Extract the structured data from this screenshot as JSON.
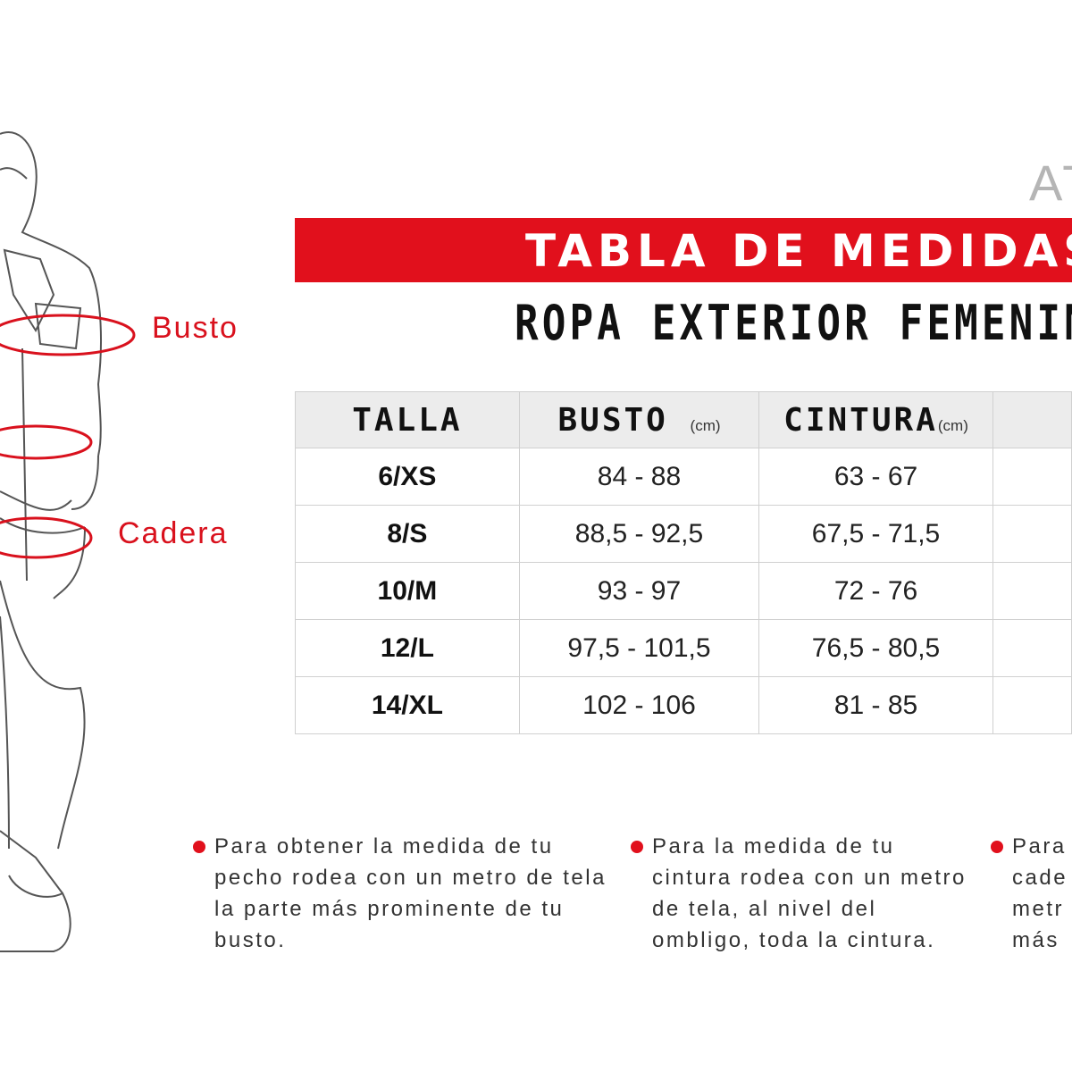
{
  "brand": "AT",
  "banner": {
    "title": "TABLA DE MEDIDAS",
    "color": "#e1101c"
  },
  "subtitle": "ROPA EXTERIOR FEMENINA",
  "figure": {
    "labels": {
      "bust": "Busto",
      "hip": "Cadera"
    }
  },
  "table": {
    "headers": [
      {
        "label": "TALLA",
        "unit": ""
      },
      {
        "label": "BUSTO",
        "unit": "(cm)"
      },
      {
        "label": "CINTURA",
        "unit": "(cm)"
      },
      {
        "label": "",
        "unit": ""
      }
    ],
    "rows": [
      [
        "6/XS",
        "84 - 88",
        "63 -  67",
        ""
      ],
      [
        "8/S",
        "88,5 - 92,5",
        "67,5 -  71,5",
        ""
      ],
      [
        "10/M",
        "93 - 97",
        "72 - 76",
        ""
      ],
      [
        "12/L",
        "97,5 - 101,5",
        "76,5 - 80,5",
        ""
      ],
      [
        "14/XL",
        "102 - 106",
        "81 - 85",
        ""
      ]
    ]
  },
  "notes": [
    "Para obtener la medida de tu pecho rodea con un metro de tela la parte más prominente de tu busto.",
    "Para la medida de tu cintura rodea con un metro de tela, al nivel del ombligo, toda la cintura.",
    "Para cade metr más"
  ]
}
